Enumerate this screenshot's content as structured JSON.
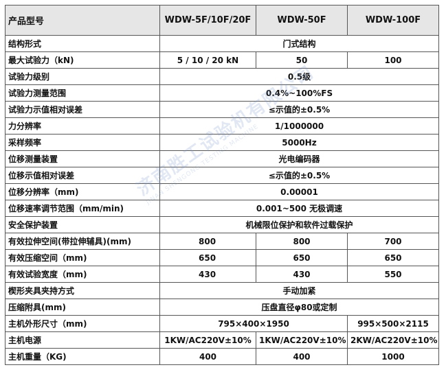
{
  "table": {
    "header": [
      "产品型号",
      "WDW-5F/10F/20F",
      "WDW-50F",
      "WDW-100F"
    ],
    "rows": [
      [
        "结构形式",
        "门式结构"
      ],
      [
        "最大试验力（kN)",
        "5 / 10 / 20 kN",
        "50",
        "100"
      ],
      [
        "试验力级别",
        "0.5级"
      ],
      [
        "试验力测量范围",
        "0.4%~100%FS"
      ],
      [
        "试验力示值相对误差",
        "≤示值的±0.5%"
      ],
      [
        "力分辨率",
        "1/1000000"
      ],
      [
        "采样频率",
        "5000Hz"
      ],
      [
        "位移测量装置",
        "光电编码器"
      ],
      [
        "位移示值相对误差",
        "≤示值的±0.5%"
      ],
      [
        "位移分辨率（mm)",
        "0.00001"
      ],
      [
        "位移速率调节范围（mm/min)",
        "0.001~500 无极调速"
      ],
      [
        "安全保护装置",
        "机械限位保护和软件过载保护"
      ],
      [
        "有效拉伸空间(带拉伸辅具)(mm)",
        "800",
        "800",
        "700"
      ],
      [
        "有效压缩空间（mm)",
        "650",
        "650",
        "650"
      ],
      [
        "有效试验宽度（mm)",
        "430",
        "430",
        "550"
      ],
      [
        "楔形夹具夹持方式",
        "手动加紧"
      ],
      [
        "压缩附具(mm)",
        "压盘直径φ80或定制"
      ],
      [
        "主机外形尺寸（mm)",
        "795×400×1950",
        "995×500×2115"
      ],
      [
        "主机电源",
        "1KW/AC220V±10%",
        "1KW/AC220V±10%",
        "2KW/AC220V±10%"
      ],
      [
        "主机重量（KG)",
        "400",
        "400",
        "1000"
      ]
    ]
  },
  "watermark": {
    "name": "济南胜工试验机有限公司",
    "subtitle": "JINAN SHENGONG TESTING MACHINE"
  }
}
